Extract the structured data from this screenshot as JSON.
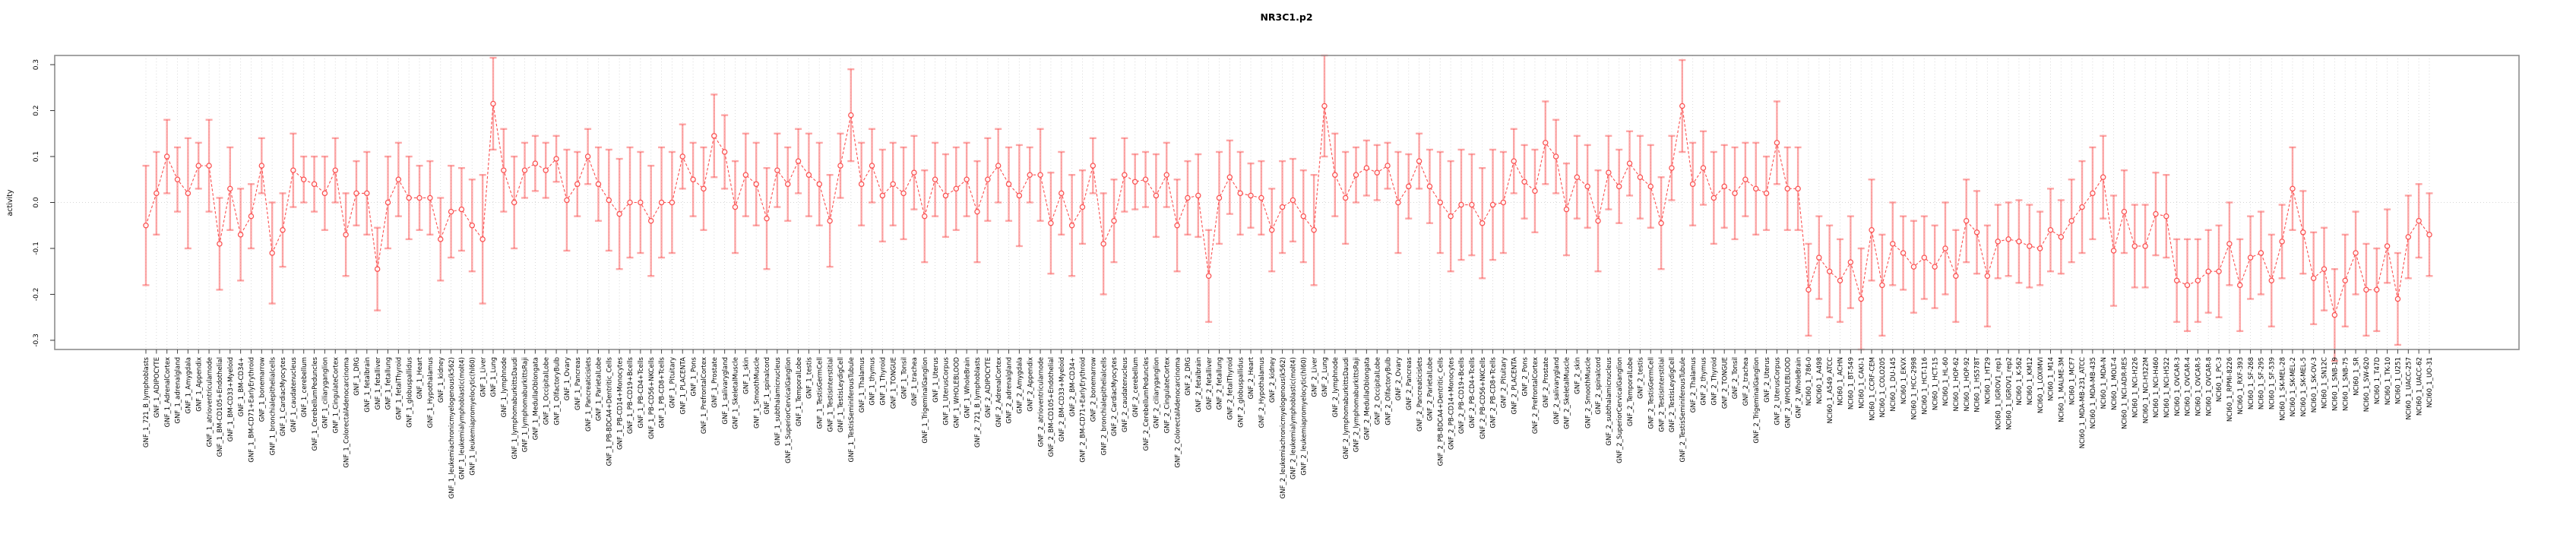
{
  "window": {
    "background": "#ffffff"
  },
  "chart_data": {
    "type": "line",
    "title": "NR3C1.p2",
    "ylabel": "activity",
    "xlabel": "",
    "ylim": [
      -0.32,
      0.32
    ],
    "yticks": [
      0.3,
      0.2,
      0.1,
      0.0,
      -0.1,
      -0.2,
      -0.3
    ],
    "legend_position": "none",
    "error_bars": true,
    "n_samples": 218,
    "grid": {
      "vertical_dotted_per_sample": true,
      "zero_line_dotted": true
    },
    "style": {
      "point_color": "#fb5050",
      "line_color": "#fb5050",
      "errorbar_color": "#fb5050",
      "errorbar_opacity": 0.5,
      "grid_color": "#d6d6d6",
      "box_color": "#8d8d8d",
      "text_color": "#000000",
      "background": "#ffffff"
    },
    "groups": [
      {
        "name": "GNF_1",
        "prefix": "GNF_1_",
        "samples": [
          "721_B_lymphoblasts",
          "ADIPOCYTE",
          "AdrenalCortex",
          "adrenalgland",
          "Amygdala",
          "Appendix",
          "atrioventricularnode",
          "BM-CD105+Endothelial",
          "BM-CD33+Myeloid",
          "BM-CD34+",
          "BM-CD71+EarlyErythroid",
          "bonemarrow",
          "bronchialepithelialcells",
          "CardiacMyocytes",
          "caudatenucleus",
          "cerebellum",
          "CerebellumPeduncles",
          "ciliaryganglion",
          "CingulateCortex",
          "ColorectalAdenocarcinoma",
          "DRG",
          "fetalbrain",
          "fetalliver",
          "fetallung",
          "fetalThyroid",
          "globuspallidus",
          "Heart",
          "Hypothalamus",
          "kidney",
          "leukemiachronicmyelogenous(k562)",
          "leukemialymphoblastic(molt4)",
          "leukemiapromyelocytic(hl60)",
          "Liver",
          "Lung",
          "lymphnode",
          "lymphomaburkittsDaudi",
          "lymphomaburkittsRaji",
          "MedullaOblongata",
          "OccipitalLobe",
          "OlfactoryBulb",
          "Ovary",
          "Pancreas",
          "Pancreaticislets",
          "ParietalLobe",
          "PB-BDCA4+Dentritic_Cells",
          "PB-CD14+Monocytes",
          "PB-CD19+Bcells",
          "PB-CD4+Tcells",
          "PB-CD56+NKCells",
          "PB-CD8+Tcells",
          "Pituitary",
          "PLACENTA",
          "Pons",
          "PrefrontalCortex",
          "Prostate",
          "salivarygland",
          "SkeletalMuscle",
          "skin",
          "SmoothMuscle",
          "spinalcord",
          "subthalamicnucleus",
          "SuperiorCervicalGanglion",
          "TemporalLobe",
          "testis",
          "TestisGermCell",
          "TestisInterstitial",
          "TestisLeydigCell",
          "TestisSeminiferousTubule",
          "Thalamus",
          "thymus",
          "Thyroid",
          "TONGUE",
          "Tonsil",
          "trachea",
          "TrigeminalGanglion",
          "Uterus",
          "UterusCorpus",
          "WHOLEBLOOD",
          "WholeBrain"
        ],
        "values": [
          -0.05,
          0.02,
          0.1,
          0.05,
          0.02,
          0.08,
          0.08,
          -0.09,
          0.03,
          -0.07,
          -0.03,
          0.08,
          -0.11,
          -0.06,
          0.07,
          0.05,
          0.04,
          0.02,
          0.07,
          -0.07,
          0.02,
          0.02,
          -0.145,
          0.0,
          0.05,
          0.01,
          0.01,
          0.01,
          -0.08,
          -0.02,
          -0.015,
          -0.05,
          -0.08,
          0.215,
          0.07,
          0.0,
          0.07,
          0.085,
          0.07,
          0.095,
          0.005,
          0.04,
          0.1,
          0.04,
          0.005,
          -0.025,
          0.0,
          0.0,
          -0.04,
          0.0,
          0.0,
          0.1,
          0.05,
          0.03,
          0.145,
          0.11,
          -0.01,
          0.06,
          0.04,
          -0.035,
          0.07,
          0.04,
          0.09,
          0.06,
          0.04,
          -0.04,
          0.08,
          0.19,
          0.04,
          0.08,
          0.015,
          0.04,
          0.02,
          0.065,
          -0.03,
          0.05,
          0.015,
          0.03,
          0.05
        ],
        "errors": [
          0.13,
          0.09,
          0.08,
          0.07,
          0.12,
          0.05,
          0.1,
          0.1,
          0.09,
          0.1,
          0.07,
          0.06,
          0.11,
          0.08,
          0.08,
          0.05,
          0.06,
          0.08,
          0.07,
          0.09,
          0.07,
          0.09,
          0.09,
          0.1,
          0.08,
          0.09,
          0.07,
          0.08,
          0.09,
          0.1,
          0.09,
          0.1,
          0.14,
          0.1,
          0.09,
          0.1,
          0.06,
          0.06,
          0.06,
          0.05,
          0.11,
          0.07,
          0.06,
          0.08,
          0.11,
          0.12,
          0.12,
          0.11,
          0.12,
          0.12,
          0.11,
          0.07,
          0.08,
          0.09,
          0.09,
          0.08,
          0.1,
          0.09,
          0.09,
          0.11,
          0.08,
          0.08,
          0.07,
          0.09,
          0.09,
          0.1,
          0.07,
          0.1,
          0.09,
          0.08,
          0.1,
          0.09,
          0.1,
          0.08,
          0.1,
          0.08,
          0.09,
          0.09,
          0.08
        ]
      },
      {
        "name": "GNF_2",
        "prefix": "GNF_2_",
        "samples": [
          "721_B_lymphoblasts",
          "ADIPOCYTE",
          "AdrenalCortex",
          "adrenalgland",
          "Amygdala",
          "Appendix",
          "atrioventricularnode",
          "BM-CD105+Endothelial",
          "BM-CD33+Myeloid",
          "BM-CD34+",
          "BM-CD71+EarlyErythroid",
          "bonemarrow",
          "bronchialepithelialcells",
          "CardiacMyocytes",
          "caudatenucleus",
          "cerebellum",
          "CerebellumPeduncles",
          "ciliaryganglion",
          "CingulateCortex",
          "ColorectalAdenocarcinoma",
          "DRG",
          "fetalbrain",
          "fetalliver",
          "fetallung",
          "fetalThyroid",
          "globuspallidus",
          "Heart",
          "Hypothalamus",
          "kidney",
          "leukemiachronicmyelogenous(k562)",
          "leukemialymphoblastic(molt4)",
          "leukemiapromyelocytic(hl60)",
          "Liver",
          "Lung",
          "lymphnode",
          "lymphomaburkittsDaudi",
          "lymphomaburkittsRaji",
          "MedullaOblongata",
          "OccipitalLobe",
          "OlfactoryBulb",
          "Ovary",
          "Pancreas",
          "Pancreaticislets",
          "ParietalLobe",
          "PB-BDCA4+Dentritic_Cells",
          "PB-CD14+Monocytes",
          "PB-CD19+Bcells",
          "PB-CD4+Tcells",
          "PB-CD56+NKCells",
          "PB-CD8+Tcells",
          "Pituitary",
          "PLACENTA",
          "Pons",
          "PrefrontalCortex",
          "Prostate",
          "salivarygland",
          "SkeletalMuscle",
          "skin",
          "SmoothMuscle",
          "spinalcord",
          "subthalamicnucleus",
          "SuperiorCervicalGanglion",
          "TemporalLobe",
          "testis",
          "TestisGermCell",
          "TestisInterstitial",
          "TestisLeydigCell",
          "TestisSeminiferousTubule",
          "Thalamus",
          "thymus",
          "Thyroid",
          "TONGUE",
          "Tonsil",
          "trachea",
          "TrigeminalGanglion",
          "Uterus",
          "UterusCorpus",
          "WHOLEBLOOD",
          "WholeBrain"
        ],
        "values": [
          -0.02,
          0.05,
          0.08,
          0.04,
          0.015,
          0.06,
          0.06,
          -0.045,
          0.02,
          -0.05,
          -0.01,
          0.08,
          -0.09,
          -0.04,
          0.06,
          0.045,
          0.05,
          0.015,
          0.06,
          -0.05,
          0.01,
          0.015,
          -0.16,
          0.01,
          0.055,
          0.02,
          0.015,
          0.01,
          -0.06,
          -0.01,
          0.005,
          -0.03,
          -0.06,
          0.21,
          0.06,
          0.01,
          0.06,
          0.075,
          0.065,
          0.08,
          0.0,
          0.035,
          0.09,
          0.035,
          0.0,
          -0.03,
          -0.005,
          -0.005,
          -0.045,
          -0.005,
          0.0,
          0.09,
          0.045,
          0.025,
          0.13,
          0.1,
          -0.015,
          0.055,
          0.035,
          -0.04,
          0.065,
          0.035,
          0.085,
          0.055,
          0.035,
          -0.045,
          0.075,
          0.21,
          0.04,
          0.075,
          0.01,
          0.035,
          0.02,
          0.05,
          0.03,
          0.02,
          0.13,
          0.03,
          0.03
        ],
        "errors": [
          0.11,
          0.09,
          0.08,
          0.08,
          0.11,
          0.06,
          0.1,
          0.11,
          0.09,
          0.11,
          0.08,
          0.06,
          0.11,
          0.09,
          0.08,
          0.06,
          0.06,
          0.09,
          0.07,
          0.1,
          0.08,
          0.09,
          0.1,
          0.1,
          0.08,
          0.09,
          0.07,
          0.08,
          0.09,
          0.1,
          0.09,
          0.1,
          0.12,
          0.11,
          0.09,
          0.1,
          0.06,
          0.06,
          0.06,
          0.05,
          0.11,
          0.07,
          0.06,
          0.08,
          0.11,
          0.12,
          0.12,
          0.11,
          0.12,
          0.12,
          0.11,
          0.07,
          0.08,
          0.09,
          0.09,
          0.08,
          0.1,
          0.09,
          0.09,
          0.11,
          0.08,
          0.08,
          0.07,
          0.09,
          0.09,
          0.1,
          0.07,
          0.1,
          0.09,
          0.08,
          0.1,
          0.09,
          0.1,
          0.08,
          0.1,
          0.08,
          0.09,
          0.09,
          0.09
        ]
      },
      {
        "name": "NCI60_1",
        "prefix": "NCI60_1_",
        "samples": [
          "786-0",
          "A498",
          "A549_ATCC",
          "ACHN",
          "BT-549",
          "CAKI-1",
          "CCRF-CEM",
          "COLO205",
          "DU-145",
          "EKVX",
          "HCC-2998",
          "HCT-116",
          "HCT-15",
          "HL-60",
          "HOP-62",
          "HOP-92",
          "HS578T",
          "HT29",
          "IGROV1_rep1",
          "IGROV1_rep2",
          "K-562",
          "KM12",
          "LOXIMVI",
          "M14",
          "MALME-3M",
          "MCF7",
          "MDA-MB-231_ATCC",
          "MDA-MB-435",
          "MDA-N",
          "MOLT-4",
          "NCI-ADR-RES",
          "NCI-H226",
          "NCI-H322M",
          "NCI-H460",
          "NCI-H522",
          "OVCAR-3",
          "OVCAR-4",
          "OVCAR-5",
          "OVCAR-8",
          "PC-3",
          "RPMI-8226",
          "RXF-393",
          "SF-268",
          "SF-295",
          "SF-539",
          "SK-MEL-28",
          "SK-MEL-2",
          "SK-MEL-5",
          "SK-OV-3",
          "SN12C",
          "SNB-19",
          "SNB-75",
          "SR",
          "SW-620",
          "T47D",
          "TK-10",
          "U251",
          "UACC-257",
          "UACC-62",
          "UO-31"
        ],
        "values": [
          -0.19,
          -0.12,
          -0.15,
          -0.17,
          -0.13,
          -0.21,
          -0.06,
          -0.18,
          -0.09,
          -0.11,
          -0.14,
          -0.12,
          -0.14,
          -0.1,
          -0.16,
          -0.04,
          -0.065,
          -0.16,
          -0.085,
          -0.08,
          -0.085,
          -0.095,
          -0.1,
          -0.06,
          -0.075,
          -0.04,
          -0.01,
          0.02,
          0.055,
          -0.105,
          -0.02,
          -0.095,
          -0.095,
          -0.025,
          -0.03,
          -0.17,
          -0.18,
          -0.17,
          -0.15,
          -0.15,
          -0.09,
          -0.18,
          -0.12,
          -0.11,
          -0.17,
          -0.085,
          0.03,
          -0.065,
          -0.165,
          -0.145,
          -0.245,
          -0.17,
          -0.11,
          -0.19,
          -0.19,
          -0.095,
          -0.21,
          -0.075,
          -0.04,
          -0.07
        ],
        "errors": [
          0.1,
          0.09,
          0.1,
          0.09,
          0.1,
          0.11,
          0.11,
          0.11,
          0.09,
          0.08,
          0.1,
          0.09,
          0.09,
          0.1,
          0.1,
          0.09,
          0.09,
          0.11,
          0.08,
          0.08,
          0.09,
          0.09,
          0.08,
          0.09,
          0.08,
          0.09,
          0.1,
          0.1,
          0.09,
          0.12,
          0.09,
          0.09,
          0.09,
          0.09,
          0.09,
          0.09,
          0.1,
          0.09,
          0.09,
          0.1,
          0.09,
          0.1,
          0.09,
          0.09,
          0.1,
          0.08,
          0.09,
          0.09,
          0.1,
          0.09,
          0.1,
          0.1,
          0.09,
          0.1,
          0.09,
          0.08,
          0.1,
          0.09,
          0.08,
          0.09
        ]
      }
    ]
  }
}
